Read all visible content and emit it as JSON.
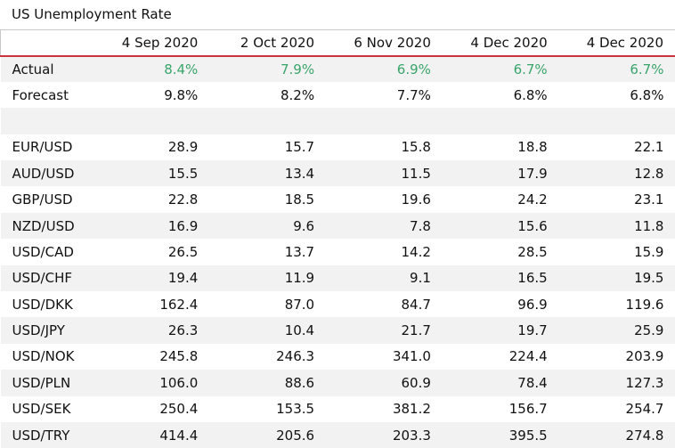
{
  "title": "US Unemployment Rate",
  "columns": [
    "",
    "4 Sep 2020",
    "2 Oct 2020",
    "6 Nov 2020",
    "4 Dec 2020",
    "4 Dec 2020"
  ],
  "summary_rows": [
    {
      "label": "Actual",
      "values": [
        "8.4%",
        "7.9%",
        "6.9%",
        "6.7%",
        "6.7%"
      ]
    },
    {
      "label": "Forecast",
      "values": [
        "9.8%",
        "8.2%",
        "7.7%",
        "6.8%",
        "6.8%"
      ]
    }
  ],
  "rows": [
    {
      "label": "EUR/USD",
      "values": [
        "28.9",
        "15.7",
        "15.8",
        "18.8",
        "22.1"
      ]
    },
    {
      "label": "AUD/USD",
      "values": [
        "15.5",
        "13.4",
        "11.5",
        "17.9",
        "12.8"
      ]
    },
    {
      "label": "GBP/USD",
      "values": [
        "22.8",
        "18.5",
        "19.6",
        "24.2",
        "23.1"
      ]
    },
    {
      "label": "NZD/USD",
      "values": [
        "16.9",
        "9.6",
        "7.8",
        "15.6",
        "11.8"
      ]
    },
    {
      "label": "USD/CAD",
      "values": [
        "26.5",
        "13.7",
        "14.2",
        "28.5",
        "15.9"
      ]
    },
    {
      "label": "USD/CHF",
      "values": [
        "19.4",
        "11.9",
        "9.1",
        "16.5",
        "19.5"
      ]
    },
    {
      "label": "USD/DKK",
      "values": [
        "162.4",
        "87.0",
        "84.7",
        "96.9",
        "119.6"
      ]
    },
    {
      "label": "USD/JPY",
      "values": [
        "26.3",
        "10.4",
        "21.7",
        "19.7",
        "25.9"
      ]
    },
    {
      "label": "USD/NOK",
      "values": [
        "245.8",
        "246.3",
        "341.0",
        "224.4",
        "203.9"
      ]
    },
    {
      "label": "USD/PLN",
      "values": [
        "106.0",
        "88.6",
        "60.9",
        "78.4",
        "127.3"
      ]
    },
    {
      "label": "USD/SEK",
      "values": [
        "250.4",
        "153.5",
        "381.2",
        "156.7",
        "254.7"
      ]
    },
    {
      "label": "USD/TRY",
      "values": [
        "414.4",
        "205.6",
        "203.3",
        "395.5",
        "274.8"
      ]
    }
  ],
  "colors": {
    "actual": "#3aa56b",
    "header_rule": "#c9333a",
    "stripe": "#f2f2f2"
  }
}
